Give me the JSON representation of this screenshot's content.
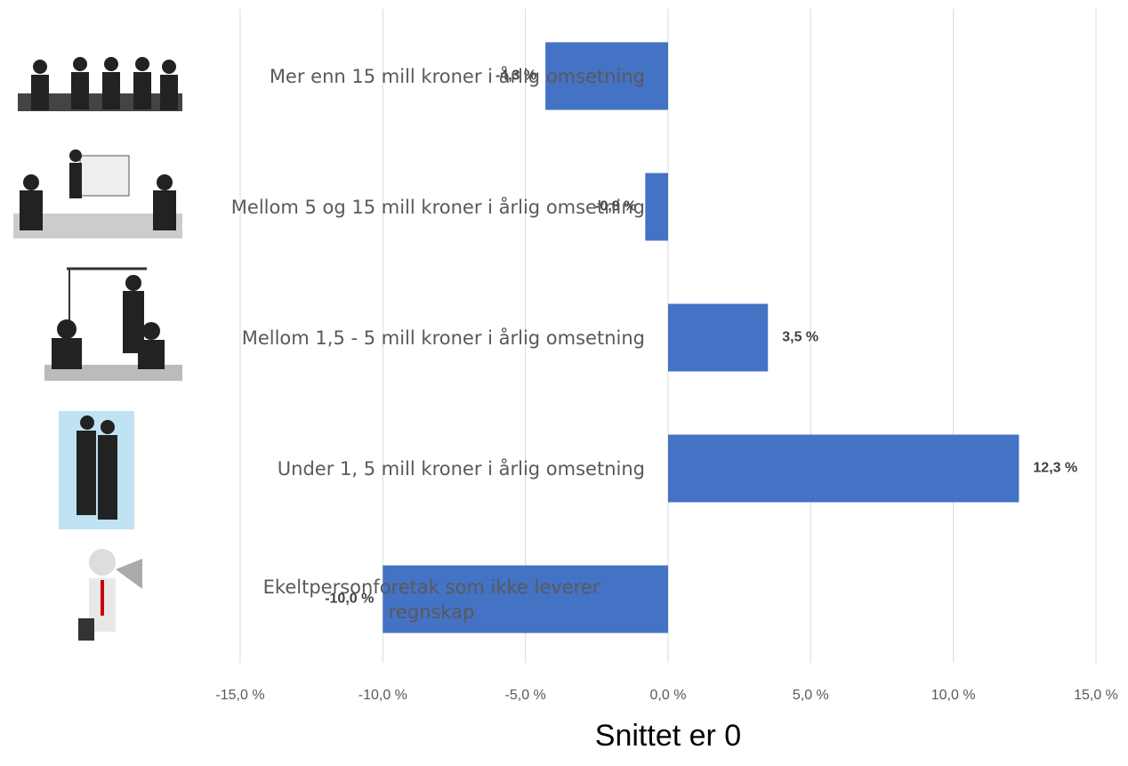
{
  "chart_data": {
    "type": "bar",
    "orientation": "horizontal",
    "title": "Snittet er 0",
    "categories": [
      "Mer enn 15 mill kroner i årlig omsetning",
      "Mellom 5 og 15 mill kroner i årlig omsetning",
      "Mellom 1,5 - 5 mill kroner i årlig omsetning",
      "Under 1, 5 mill kroner i årlig omsetning",
      "Ekeltpersonforetak som ikke leverer regnskap"
    ],
    "values": [
      -4.3,
      -0.8,
      3.5,
      12.3,
      -10.0
    ],
    "value_labels": [
      "-4,3 %",
      "-0,8 %",
      "3,5 %",
      "12,3 %",
      "-10,0 %"
    ],
    "color": "#4472c4",
    "xlim": [
      -15,
      15
    ],
    "xticks": [
      {
        "value": -15,
        "label": "-15,0 %"
      },
      {
        "value": -10,
        "label": "-10,0 %"
      },
      {
        "value": -5,
        "label": "-5,0 %"
      },
      {
        "value": 0,
        "label": "0,0 %"
      },
      {
        "value": 5,
        "label": "5,0 %"
      },
      {
        "value": 10,
        "label": "10,0 %"
      },
      {
        "value": 15,
        "label": "15,0 %"
      }
    ],
    "grid": true
  }
}
